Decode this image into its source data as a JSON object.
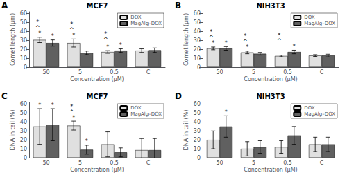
{
  "chart_data": [
    {
      "type": "bar",
      "label": "A",
      "title": "MCF7",
      "xlabel": "Concentration (μM)",
      "ylabel": "Comet length (μm)",
      "categories": [
        "50",
        "5",
        "0.5",
        "C"
      ],
      "series": [
        {
          "name": "DOX",
          "color": "#e0e0e0",
          "values": [
            30.5,
            27.0,
            17.0,
            18.5
          ],
          "errors": [
            3.0,
            4.5,
            1.5,
            2.0
          ],
          "annotations": [
            "*",
            "*",
            "*",
            null
          ]
        },
        {
          "name": "MagAlg–DOX",
          "color": "#606060",
          "values": [
            27.0,
            16.0,
            18.5,
            19.0
          ],
          "errors": [
            3.5,
            2.0,
            2.0,
            2.5
          ],
          "annotations": [
            "*",
            null,
            "*",
            null
          ]
        }
      ],
      "group_annotations": [
        "*\n^",
        "*\n^",
        "*\n^",
        null
      ],
      "ylim": [
        0,
        62
      ],
      "yticks": [
        0,
        10,
        20,
        30,
        40,
        50,
        60
      ],
      "grid": false,
      "legend": "upper right"
    },
    {
      "type": "bar",
      "label": "B",
      "title": "NIH3T3",
      "xlabel": "Concentration (μM)",
      "ylabel": "Comet length (μm)",
      "categories": [
        "50",
        "5",
        "0.5",
        "C"
      ],
      "series": [
        {
          "name": "DOX",
          "color": "#e0e0e0",
          "values": [
            21.0,
            16.5,
            12.5,
            13.0
          ],
          "errors": [
            1.5,
            1.5,
            1.0,
            1.0
          ],
          "annotations": [
            "*",
            "*",
            null,
            null
          ]
        },
        {
          "name": "MagAlg–DOX",
          "color": "#606060",
          "values": [
            21.0,
            15.0,
            17.0,
            13.0
          ],
          "errors": [
            2.0,
            1.5,
            2.0,
            1.5
          ],
          "annotations": [
            "*",
            null,
            "*",
            null
          ]
        }
      ],
      "group_annotations": [
        "*\n^",
        "*\n^",
        "*\n^",
        null
      ],
      "ylim": [
        0,
        62
      ],
      "yticks": [
        0,
        10,
        20,
        30,
        40,
        50,
        60
      ],
      "grid": false,
      "legend": "upper right"
    },
    {
      "type": "bar",
      "label": "C",
      "title": "MCF7",
      "xlabel": "Concentration (μM)",
      "ylabel": "DNA in tail (%)",
      "categories": [
        "50",
        "5",
        "0.5",
        "C"
      ],
      "series": [
        {
          "name": "DOX",
          "color": "#e0e0e0",
          "values": [
            35.0,
            36.0,
            15.0,
            8.5
          ],
          "errors": [
            20.0,
            5.0,
            14.0,
            13.0
          ],
          "annotations": [
            "*",
            "*",
            null,
            null
          ]
        },
        {
          "name": "MagAlg–DOX",
          "color": "#606060",
          "values": [
            37.0,
            9.0,
            6.0,
            8.5
          ],
          "errors": [
            18.0,
            5.0,
            5.0,
            13.0
          ],
          "annotations": [
            "*",
            "*",
            null,
            null
          ]
        }
      ],
      "group_annotations": [
        null,
        "*\n^",
        null,
        null
      ],
      "ylim": [
        0,
        62
      ],
      "yticks": [
        0,
        10,
        20,
        30,
        40,
        50,
        60
      ],
      "grid": false,
      "legend": "upper right"
    },
    {
      "type": "bar",
      "label": "D",
      "title": "NIH3T3",
      "xlabel": "Concentration (μM)",
      "ylabel": "DNA in tail (%)",
      "categories": [
        "50",
        "5",
        "0.5",
        "C"
      ],
      "series": [
        {
          "name": "DOX",
          "color": "#e0e0e0",
          "values": [
            20.0,
            10.0,
            12.0,
            15.0
          ],
          "errors": [
            10.0,
            8.0,
            7.0,
            8.0
          ],
          "annotations": [
            null,
            null,
            null,
            null
          ]
        },
        {
          "name": "MagAlg–DOX",
          "color": "#606060",
          "values": [
            35.0,
            12.0,
            25.0,
            15.0
          ],
          "errors": [
            12.0,
            7.0,
            10.0,
            8.0
          ],
          "annotations": [
            "*",
            null,
            null,
            null
          ]
        }
      ],
      "group_annotations": [
        null,
        null,
        null,
        null
      ],
      "ylim": [
        0,
        62
      ],
      "yticks": [
        0,
        10,
        20,
        30,
        40,
        50,
        60
      ],
      "grid": false,
      "legend": "upper right"
    }
  ]
}
